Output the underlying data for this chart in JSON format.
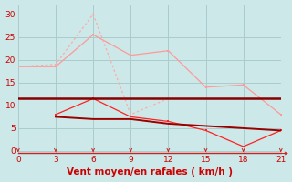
{
  "x": [
    0,
    3,
    6,
    9,
    12,
    15,
    18,
    21
  ],
  "line1_x": [
    0,
    3,
    6,
    9,
    12,
    15,
    18,
    21
  ],
  "line1_y": [
    18.5,
    18.5,
    25.5,
    21.0,
    22.0,
    14.0,
    14.5,
    8.0
  ],
  "line2_x": [
    0,
    3,
    6,
    9,
    12
  ],
  "line2_y": [
    18.5,
    19.0,
    30.0,
    8.0,
    11.5
  ],
  "line3_x": [
    0,
    3,
    6,
    9,
    12,
    15,
    18,
    21
  ],
  "line3_y": [
    11.5,
    11.5,
    11.5,
    11.5,
    11.5,
    11.5,
    11.5,
    11.5
  ],
  "line4_x": [
    3,
    6,
    9,
    12,
    15,
    18,
    21
  ],
  "line4_y": [
    8.0,
    11.5,
    7.5,
    6.5,
    4.5,
    1.0,
    4.5
  ],
  "line5_x": [
    3,
    6,
    9,
    12,
    18,
    21
  ],
  "line5_y": [
    7.5,
    7.0,
    7.0,
    6.0,
    5.0,
    4.5
  ],
  "bg_color": "#cce8e8",
  "grid_color": "#aacccc",
  "line1_color": "#ff9999",
  "line2_color": "#ffaaaa",
  "line3_color": "#880000",
  "line4_color": "#ff2222",
  "line5_color": "#990000",
  "xlabel": "Vent moyen/en rafales ( km/h )",
  "ylim": [
    -0.5,
    32
  ],
  "xlim": [
    0,
    21
  ],
  "yticks": [
    0,
    5,
    10,
    15,
    20,
    25,
    30
  ],
  "xticks": [
    0,
    3,
    6,
    9,
    12,
    15,
    18,
    21
  ],
  "arrow_color": "#cc2222",
  "tick_color": "#cc0000",
  "xlabel_color": "#cc0000",
  "xlabel_fontsize": 7.5,
  "ylabel_fontsize": 7
}
